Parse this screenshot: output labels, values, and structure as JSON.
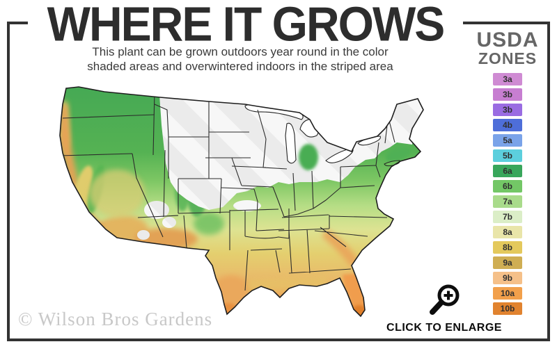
{
  "header": {
    "title": "WHERE IT GROWS",
    "subtitle_line1": "This plant can be grown outdoors year round in the color",
    "subtitle_line2": "shaded areas and overwintered indoors in the striped area"
  },
  "legend": {
    "title_line1": "USDA",
    "title_line2": "ZONES",
    "zones": [
      {
        "label": "3a",
        "color": "#cf8bd3"
      },
      {
        "label": "3b",
        "color": "#c77ed1"
      },
      {
        "label": "3b",
        "color": "#9a6ce2"
      },
      {
        "label": "4b",
        "color": "#4e6ed9"
      },
      {
        "label": "5a",
        "color": "#7aa3e9"
      },
      {
        "label": "5b",
        "color": "#5ccfdd"
      },
      {
        "label": "6a",
        "color": "#38a65b"
      },
      {
        "label": "6b",
        "color": "#73c766"
      },
      {
        "label": "7a",
        "color": "#a9db8b"
      },
      {
        "label": "7b",
        "color": "#dbeec7"
      },
      {
        "label": "8a",
        "color": "#e9e5a9"
      },
      {
        "label": "8b",
        "color": "#e4c95c"
      },
      {
        "label": "9a",
        "color": "#cfae53"
      },
      {
        "label": "9b",
        "color": "#f5c089"
      },
      {
        "label": "10a",
        "color": "#f2a04b"
      },
      {
        "label": "10b",
        "color": "#e1832f"
      }
    ]
  },
  "map": {
    "name": "usda-hardiness-us-map",
    "hardy_region": "color shaded",
    "overwinter_region": "striped",
    "palette": {
      "north_green": "#44a854",
      "mid_green": "#7ec764",
      "pale_green": "#b5dd85",
      "pale_yellow": "#dde392",
      "gold": "#e4cf6f",
      "light_orange": "#eda355",
      "deep_orange": "#e68a35",
      "striped_white": "#f7f7f7",
      "stripe_gray": "#ebebeb",
      "border_line": "#222222"
    }
  },
  "enlarge": {
    "label": "CLICK TO ENLARGE",
    "icon": "magnifier-plus-icon"
  },
  "watermark": {
    "text": "© Wilson Bros Gardens"
  },
  "frame_color": "#333333"
}
